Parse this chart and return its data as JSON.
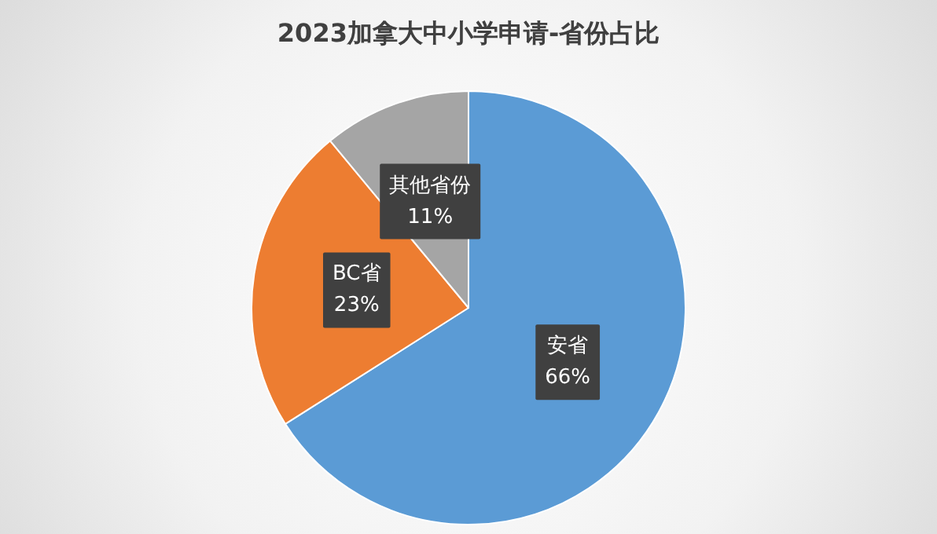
{
  "chart_data": {
    "type": "pie",
    "title": "2023加拿大中小学申请-省份占比",
    "categories": [
      "安省",
      "BC省",
      "其他省份"
    ],
    "values": [
      66,
      23,
      11
    ],
    "value_labels": [
      "66%",
      "23%",
      "11%"
    ],
    "colors": [
      "#5b9bd5",
      "#ed7d31",
      "#a5a5a5"
    ]
  }
}
